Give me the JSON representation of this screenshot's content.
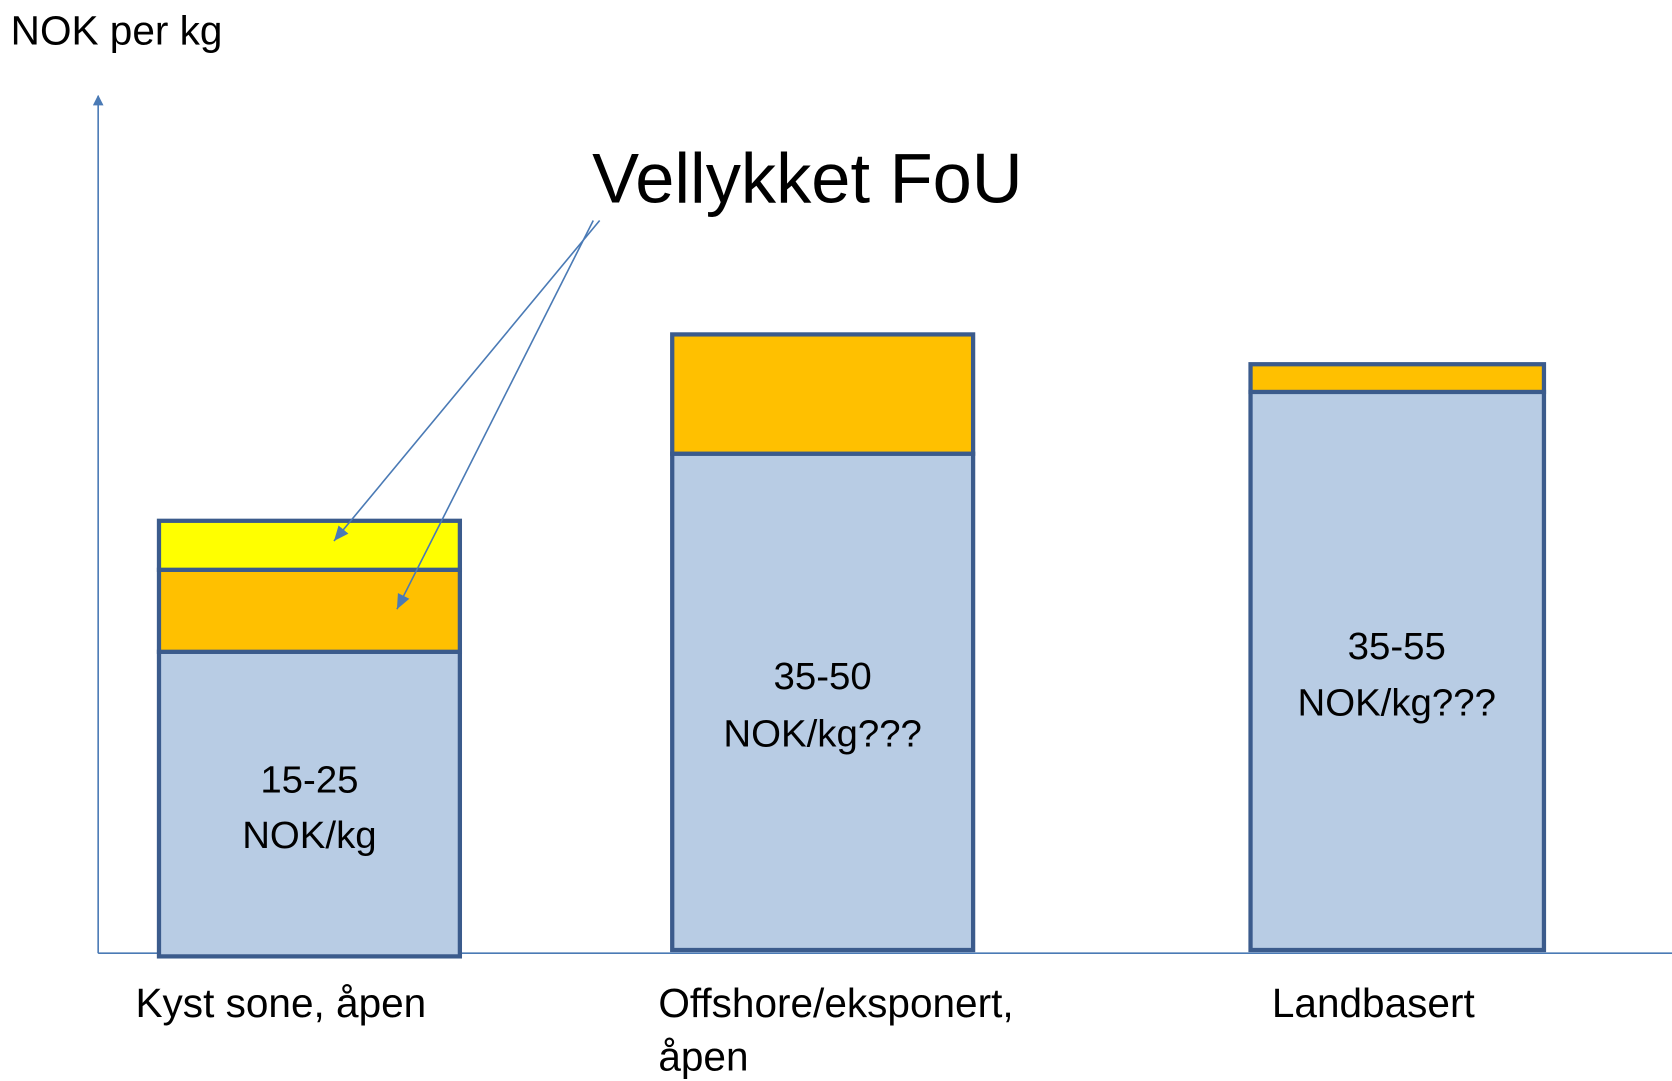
{
  "y_axis_label": "NOK per kg",
  "annotation": "Vellykket FoU",
  "columns": [
    {
      "category": [
        "Kyst sone, åpen"
      ],
      "label": [
        "15-25",
        "NOK/kg"
      ]
    },
    {
      "category": [
        "Offshore/eksponert,",
        "åpen"
      ],
      "label": [
        "35-50",
        "NOK/kg???"
      ]
    },
    {
      "category": [
        "Landbasert"
      ],
      "label": [
        "35-55",
        "NOK/kg???"
      ]
    }
  ]
}
